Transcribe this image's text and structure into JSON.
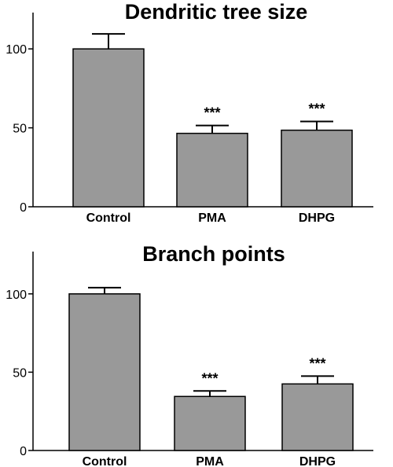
{
  "chart_data": [
    {
      "type": "bar",
      "title": "Dendritic tree size",
      "categories": [
        "Control",
        "PMA",
        "DHPG"
      ],
      "values": [
        100,
        46.5,
        48.5
      ],
      "errors": [
        9.5,
        5,
        5.5
      ],
      "significance": [
        "",
        "***",
        "***"
      ],
      "ylim": [
        0,
        123
      ],
      "yticks": [
        0,
        50,
        100
      ],
      "bar_color": "#999999"
    },
    {
      "type": "bar",
      "title": "Branch points",
      "categories": [
        "Control",
        "PMA",
        "DHPG"
      ],
      "values": [
        100,
        34.5,
        42.5
      ],
      "errors": [
        4,
        3.5,
        5
      ],
      "significance": [
        "",
        "***",
        "***"
      ],
      "ylim": [
        0,
        127
      ],
      "yticks": [
        0,
        50,
        100
      ],
      "bar_color": "#999999"
    }
  ]
}
